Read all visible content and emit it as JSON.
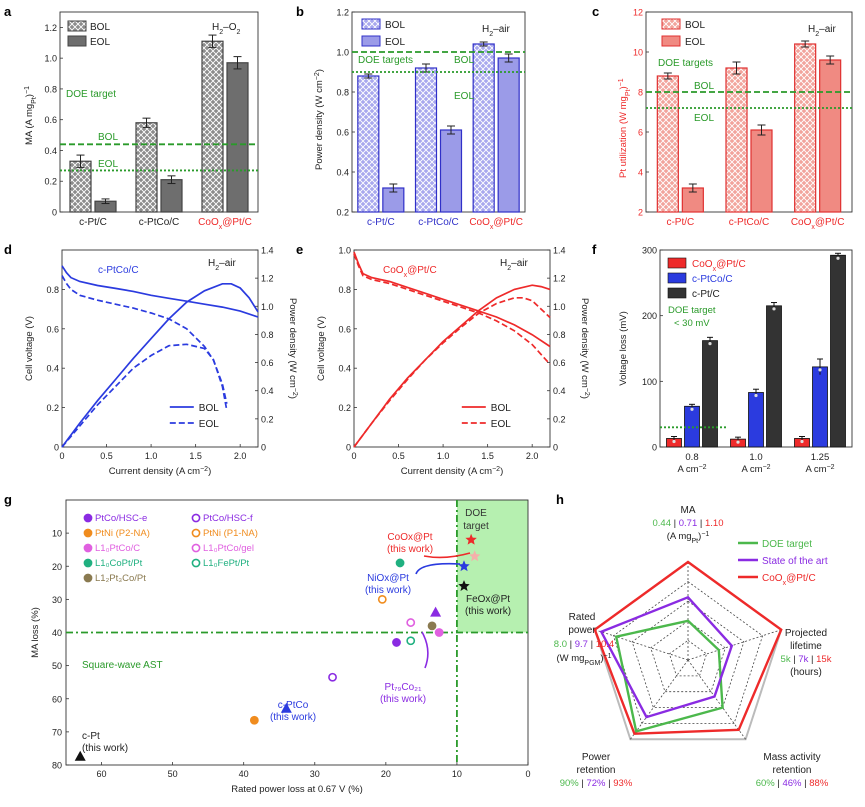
{
  "colors": {
    "bol_k": "#888888",
    "eol_k": "#6a6a6a",
    "bol_b": "#b9b9f0",
    "eol_b": "#9b9be8",
    "edge_b": "#3030c8",
    "bol_r": "#f4b0aa",
    "eol_r": "#f08a82",
    "edge_r": "#e03030",
    "blue": "#2b3bdf",
    "red": "#ee2a2a",
    "green": "#2a9a2a",
    "dark": "#333333",
    "purple": "#8a2be2",
    "orange": "#f08c1e",
    "pink": "#e060e0",
    "teal": "#20b080",
    "olive": "#8a7a50"
  },
  "chart_data": [
    {
      "type": "bar",
      "panel": "a",
      "ylabel": "MA (A mgPt⁻¹)",
      "annotation": "H₂–O₂",
      "categories": [
        "c-Pt/C",
        "c-PtCo/C",
        "CoOx@Pt/C"
      ],
      "series": [
        {
          "name": "BOL",
          "values": [
            0.33,
            0.58,
            1.11
          ],
          "err": [
            0.04,
            0.03,
            0.04
          ]
        },
        {
          "name": "EOL",
          "values": [
            0.07,
            0.21,
            0.97
          ],
          "err": [
            0.015,
            0.025,
            0.04
          ]
        }
      ],
      "ylim": [
        0,
        1.3
      ],
      "yticks": [
        "0",
        "0.2",
        "0.4",
        "0.6",
        "0.8",
        "1.0",
        "1.2"
      ],
      "ref_lines": [
        {
          "value": 0.44,
          "label": "BOL",
          "style": "dash"
        },
        {
          "value": 0.27,
          "label": "EOL",
          "style": "dot"
        }
      ],
      "target_label": "DOE target"
    },
    {
      "type": "bar",
      "panel": "b",
      "ylabel": "Power density (W cm⁻²)",
      "annotation": "H₂–air",
      "categories": [
        "c-Pt/C",
        "c-PtCo/C",
        "CoOx@Pt/C"
      ],
      "series": [
        {
          "name": "BOL",
          "values": [
            0.88,
            0.92,
            1.04
          ],
          "err": [
            0.01,
            0.02,
            0.01
          ]
        },
        {
          "name": "EOL",
          "values": [
            0.32,
            0.61,
            0.97
          ],
          "err": [
            0.02,
            0.02,
            0.02
          ]
        }
      ],
      "ylim": [
        0.2,
        1.2
      ],
      "yticks": [
        "0.2",
        "0.4",
        "0.6",
        "0.8",
        "1.0",
        "1.2"
      ],
      "ref_lines": [
        {
          "value": 1.0,
          "label": "BOL",
          "style": "dash"
        },
        {
          "value": 0.9,
          "label": "EOL",
          "style": "dot"
        }
      ],
      "target_label": "DOE targets"
    },
    {
      "type": "bar",
      "panel": "c",
      "ylabel": "Pt utilization (W mgPt⁻¹)",
      "annotation": "H₂–air",
      "categories": [
        "c-Pt/C",
        "c-PtCo/C",
        "CoOx@Pt/C"
      ],
      "series": [
        {
          "name": "BOL",
          "values": [
            8.8,
            9.2,
            10.4
          ],
          "err": [
            0.15,
            0.3,
            0.15
          ]
        },
        {
          "name": "EOL",
          "values": [
            3.2,
            6.1,
            9.6
          ],
          "err": [
            0.2,
            0.25,
            0.2
          ]
        }
      ],
      "ylim": [
        2,
        12
      ],
      "yticks": [
        "2",
        "4",
        "6",
        "8",
        "10",
        "12"
      ],
      "ref_lines": [
        {
          "value": 8.0,
          "label": "BOL",
          "style": "dash"
        },
        {
          "value": 7.2,
          "label": "EOL",
          "style": "dot"
        }
      ],
      "target_label": "DOE targets"
    },
    {
      "type": "line",
      "panel": "d",
      "xlabel": "Current density (A cm⁻²)",
      "ylabel": "Cell voltage (V)",
      "ylabel2": "Power density (W cm⁻²)",
      "annotation": "H₂–air",
      "material": "c-PtCo/C",
      "xlim": [
        0,
        2.2
      ],
      "ylim": [
        0,
        1.0
      ],
      "ylim2": [
        0,
        1.4
      ],
      "xticks": [
        "0",
        "0.5",
        "1.0",
        "1.5",
        "2.0"
      ],
      "yticks": [
        "0",
        "0.2",
        "0.4",
        "0.6",
        "0.8"
      ],
      "yticks2": [
        "0",
        "0.2",
        "0.4",
        "0.6",
        "0.8",
        "1.0",
        "1.2",
        "1.4"
      ],
      "series": [
        {
          "name": "BOL",
          "style": "solid",
          "axis": "left",
          "x": [
            0,
            0.05,
            0.1,
            0.2,
            0.4,
            0.6,
            0.8,
            1.0,
            1.2,
            1.4,
            1.6,
            1.8,
            2.0,
            2.2
          ],
          "y": [
            0.92,
            0.885,
            0.86,
            0.84,
            0.82,
            0.805,
            0.79,
            0.77,
            0.755,
            0.74,
            0.725,
            0.71,
            0.69,
            0.66
          ]
        },
        {
          "name": "EOL",
          "style": "dash",
          "axis": "left",
          "x": [
            0,
            0.05,
            0.1,
            0.2,
            0.4,
            0.6,
            0.8,
            1.0,
            1.2,
            1.4,
            1.6,
            1.7,
            1.8,
            1.85
          ],
          "y": [
            0.87,
            0.83,
            0.8,
            0.77,
            0.745,
            0.725,
            0.705,
            0.68,
            0.65,
            0.6,
            0.51,
            0.44,
            0.32,
            0.22
          ]
        },
        {
          "name": "BOL",
          "style": "solid",
          "axis": "right",
          "x": [
            0,
            0.2,
            0.4,
            0.6,
            0.8,
            1.0,
            1.2,
            1.4,
            1.6,
            1.8,
            1.9,
            2.0,
            2.1,
            2.2
          ],
          "y": [
            0,
            0.17,
            0.33,
            0.48,
            0.63,
            0.77,
            0.91,
            1.03,
            1.11,
            1.16,
            1.16,
            1.13,
            1.06,
            0.96
          ]
        },
        {
          "name": "EOL",
          "style": "dash",
          "axis": "right",
          "x": [
            0,
            0.2,
            0.4,
            0.6,
            0.8,
            1.0,
            1.2,
            1.4,
            1.6,
            1.7,
            1.8,
            1.85
          ],
          "y": [
            0,
            0.15,
            0.3,
            0.43,
            0.56,
            0.65,
            0.72,
            0.73,
            0.7,
            0.62,
            0.43,
            0.26
          ]
        }
      ]
    },
    {
      "type": "line",
      "panel": "e",
      "xlabel": "Current density (A cm⁻²)",
      "ylabel": "Cell voltage (V)",
      "ylabel2": "Power density (W cm⁻²)",
      "annotation": "H₂–air",
      "material": "CoOx@Pt/C",
      "xlim": [
        0,
        2.2
      ],
      "ylim": [
        0,
        1.0
      ],
      "ylim2": [
        0,
        1.4
      ],
      "xticks": [
        "0",
        "0.5",
        "1.0",
        "1.5",
        "2.0"
      ],
      "yticks": [
        "0",
        "0.2",
        "0.4",
        "0.6",
        "0.8",
        "1.0"
      ],
      "yticks2": [
        "0",
        "0.2",
        "0.4",
        "0.6",
        "0.8",
        "1.0",
        "1.2",
        "1.4"
      ],
      "series": [
        {
          "name": "BOL",
          "style": "solid",
          "axis": "left",
          "x": [
            0,
            0.05,
            0.1,
            0.2,
            0.4,
            0.6,
            0.8,
            1.0,
            1.2,
            1.4,
            1.6,
            1.8,
            2.0,
            2.2
          ],
          "y": [
            0.99,
            0.93,
            0.88,
            0.86,
            0.84,
            0.81,
            0.78,
            0.75,
            0.72,
            0.69,
            0.66,
            0.62,
            0.57,
            0.51
          ]
        },
        {
          "name": "EOL",
          "style": "dash",
          "axis": "left",
          "x": [
            0,
            0.05,
            0.1,
            0.2,
            0.4,
            0.6,
            0.8,
            1.0,
            1.2,
            1.4,
            1.6,
            1.8,
            2.0,
            2.2
          ],
          "y": [
            0.98,
            0.92,
            0.87,
            0.85,
            0.83,
            0.8,
            0.77,
            0.74,
            0.71,
            0.68,
            0.64,
            0.59,
            0.52,
            0.42
          ]
        },
        {
          "name": "BOL",
          "style": "solid",
          "axis": "right",
          "x": [
            0,
            0.2,
            0.4,
            0.6,
            0.8,
            1.0,
            1.2,
            1.4,
            1.6,
            1.8,
            2.0,
            2.1,
            2.2
          ],
          "y": [
            0,
            0.17,
            0.34,
            0.49,
            0.62,
            0.75,
            0.86,
            0.97,
            1.06,
            1.12,
            1.15,
            1.14,
            1.12
          ]
        },
        {
          "name": "EOL",
          "style": "dash",
          "axis": "right",
          "x": [
            0,
            0.2,
            0.4,
            0.6,
            0.8,
            1.0,
            1.2,
            1.4,
            1.6,
            1.8,
            1.9,
            2.0,
            2.1,
            2.2
          ],
          "y": [
            0,
            0.17,
            0.33,
            0.48,
            0.62,
            0.74,
            0.85,
            0.95,
            1.02,
            1.06,
            1.06,
            1.04,
            0.98,
            0.92
          ]
        }
      ]
    },
    {
      "type": "bar",
      "panel": "f",
      "ylabel": "Voltage loss (mV)",
      "categories": [
        "0.8",
        "1.0",
        "1.25"
      ],
      "category_unit": "A cm⁻²",
      "series": [
        {
          "name": "CoOx@Pt/C",
          "values": [
            13,
            12,
            13
          ],
          "err": [
            3,
            3,
            3
          ]
        },
        {
          "name": "c-PtCo/C",
          "values": [
            62,
            83,
            122
          ],
          "err": [
            3,
            5,
            12
          ]
        },
        {
          "name": "c-Pt/C",
          "values": [
            162,
            215,
            292
          ],
          "err": [
            5,
            5,
            3
          ]
        }
      ],
      "ylim": [
        0,
        300
      ],
      "yticks": [
        "0",
        "100",
        "200",
        "300"
      ],
      "ref_lines": [
        {
          "value": 30,
          "style": "dot"
        }
      ],
      "target_label": "DOE target",
      "target_sub": "< 30 mV"
    },
    {
      "type": "scatter",
      "panel": "g",
      "xlabel": "Rated power loss at 0.67 V (%)",
      "ylabel": "MA loss (%)",
      "xlim": [
        65,
        0
      ],
      "ylim": [
        80,
        0
      ],
      "xticks": [
        "60",
        "50",
        "40",
        "30",
        "20",
        "10",
        "0"
      ],
      "yticks": [
        "10",
        "20",
        "30",
        "40",
        "50",
        "60",
        "70",
        "80"
      ],
      "ref_lines": [
        {
          "axis": "x",
          "value": 10
        },
        {
          "axis": "y",
          "value": 40
        }
      ],
      "target_label": "DOE target",
      "region_label": "Square-wave AST",
      "legend": [
        {
          "name": "PtCo/HSC-e",
          "marker": "circle",
          "fill": true,
          "color": "#8a2be2"
        },
        {
          "name": "PtNi (P2-NA)",
          "marker": "circle",
          "fill": true,
          "color": "#f08c1e"
        },
        {
          "name": "L1₀PtCo/C",
          "marker": "circle",
          "fill": true,
          "color": "#e060e0"
        },
        {
          "name": "L1₀CoPt/Pt",
          "marker": "circle",
          "fill": true,
          "color": "#20b080"
        },
        {
          "name": "L1₂Pt₃Co/Pt",
          "marker": "circle",
          "fill": true,
          "color": "#8a7a50"
        },
        {
          "name": "PtCo/HSC-f",
          "marker": "circle",
          "fill": false,
          "color": "#8a2be2"
        },
        {
          "name": "PtNi (P1-NA)",
          "marker": "circle",
          "fill": false,
          "color": "#f08c1e"
        },
        {
          "name": "L1₀PtCo/gel",
          "marker": "circle",
          "fill": false,
          "color": "#e060e0"
        },
        {
          "name": "L1₀FePt/Pt",
          "marker": "circle",
          "fill": false,
          "color": "#20b080"
        }
      ],
      "points": [
        {
          "name": "CoOx@Pt (this work)",
          "x": 8,
          "y": 12,
          "marker": "star",
          "color": "#ee2a2a"
        },
        {
          "name": "star-pink",
          "x": 7.5,
          "y": 17,
          "marker": "star",
          "color": "#f4b0aa"
        },
        {
          "name": "NiOx@Pt (this work)",
          "x": 9,
          "y": 20,
          "marker": "star",
          "color": "#2b3bdf"
        },
        {
          "name": "FeOx@Pt (this work)",
          "x": 9,
          "y": 26,
          "marker": "star",
          "color": "#111111"
        },
        {
          "name": "L1₀CoPt/Pt",
          "x": 18,
          "y": 19,
          "marker": "circle",
          "fill": true,
          "color": "#20b080"
        },
        {
          "name": "PtNi (P1-NA)",
          "x": 20.5,
          "y": 30,
          "marker": "circle",
          "fill": false,
          "color": "#f08c1e"
        },
        {
          "name": "Pt₇₉Co₂₁",
          "x": 13,
          "y": 34,
          "marker": "triangle",
          "color": "#8a2be2"
        },
        {
          "name": "L1₂Pt₃Co/Pt",
          "x": 13.5,
          "y": 38,
          "marker": "circle",
          "fill": true,
          "color": "#8a7a50"
        },
        {
          "name": "L1₀PtCo/C",
          "x": 12.5,
          "y": 40,
          "marker": "circle",
          "fill": true,
          "color": "#e060e0"
        },
        {
          "name": "L1₀PtCo/gel",
          "x": 16.5,
          "y": 37,
          "marker": "circle",
          "fill": false,
          "color": "#e060e0"
        },
        {
          "name": "L1₀FePt/Pt",
          "x": 16.5,
          "y": 42.5,
          "marker": "circle",
          "fill": false,
          "color": "#20b080"
        },
        {
          "name": "PtCo/HSC-e",
          "x": 18.5,
          "y": 43,
          "marker": "circle",
          "fill": true,
          "color": "#8a2be2"
        },
        {
          "name": "PtCo/HSC-f",
          "x": 27.5,
          "y": 53.5,
          "marker": "circle",
          "fill": false,
          "color": "#8a2be2"
        },
        {
          "name": "c-PtCo (this work)",
          "x": 34,
          "y": 63,
          "marker": "triangle",
          "color": "#2b3bdf"
        },
        {
          "name": "PtNi (P2-NA)",
          "x": 38.5,
          "y": 66.5,
          "marker": "circle",
          "fill": true,
          "color": "#f08c1e"
        },
        {
          "name": "c-Pt (this work)",
          "x": 63,
          "y": 77.5,
          "marker": "triangle",
          "color": "#111111"
        }
      ],
      "labels": {
        "coox": "CoOx@Pt",
        "coox_sub": "(this work)",
        "niox": "NiOx@Pt",
        "niox_sub": "(this work)",
        "feox": "FeOx@Pt",
        "feox_sub": "(this work)",
        "ptco": "Pt₇₉Co₂₁",
        "ptco_sub": "(this work)",
        "cptco": "c-PtCo",
        "cptco_sub": "(this work)",
        "cpt": "c-Pt",
        "cpt_sub": "(this work)"
      }
    },
    {
      "type": "radar",
      "panel": "h",
      "axes": [
        {
          "name": "MA",
          "values": "0.44 | 0.71 | 1.10",
          "unit": "(A mgPt⁻¹)"
        },
        {
          "name": "Projected lifetime",
          "values": "5k | 7k | 15k",
          "unit": "(hours)"
        },
        {
          "name": "Mass activity retention",
          "values": "60% | 46% | 88%"
        },
        {
          "name": "Power retention",
          "values": "90% | 72% | 93%"
        },
        {
          "name": "Rated power",
          "values": "8.0 | 9.7 | 10.4",
          "unit": "(W mgPGM⁻¹)"
        }
      ],
      "series": [
        {
          "name": "DOE target",
          "color": "#4cb84c",
          "values": [
            0.4,
            0.33,
            0.6,
            0.9,
            0.77
          ]
        },
        {
          "name": "State of the art",
          "color": "#8a2be2",
          "values": [
            0.64,
            0.47,
            0.46,
            0.72,
            0.93
          ]
        },
        {
          "name": "CoOx@Pt/C",
          "color": "#ee2a2a",
          "values": [
            1.0,
            1.0,
            0.88,
            0.93,
            1.0
          ]
        }
      ]
    }
  ],
  "panel_labels": [
    "a",
    "b",
    "c",
    "d",
    "e",
    "f",
    "g",
    "h"
  ]
}
